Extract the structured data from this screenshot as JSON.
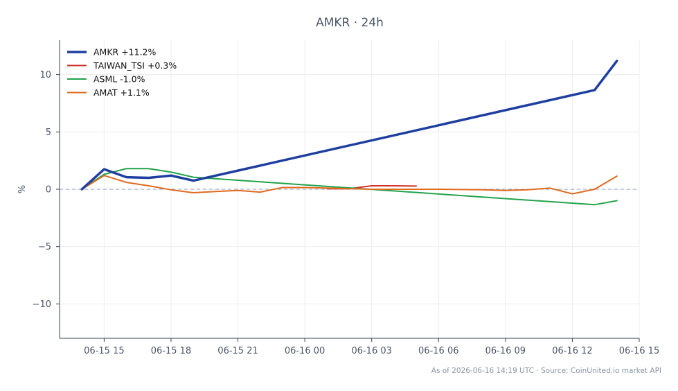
{
  "chart_data": {
    "type": "line",
    "title": "AMKR · 24h",
    "ylabel": "%",
    "xlabel": "",
    "xlim": [
      "2026-06-15 13:00",
      "2026-06-16 15:00"
    ],
    "ylim": [
      -13,
      13
    ],
    "x_ticks": [
      {
        "value": "2026-06-15 15:00",
        "label": "06-15 15"
      },
      {
        "value": "2026-06-15 18:00",
        "label": "06-15 18"
      },
      {
        "value": "2026-06-15 21:00",
        "label": "06-15 21"
      },
      {
        "value": "2026-06-16 00:00",
        "label": "06-16 00"
      },
      {
        "value": "2026-06-16 03:00",
        "label": "06-16 03"
      },
      {
        "value": "2026-06-16 06:00",
        "label": "06-16 06"
      },
      {
        "value": "2026-06-16 09:00",
        "label": "06-16 09"
      },
      {
        "value": "2026-06-16 12:00",
        "label": "06-16 12"
      },
      {
        "value": "2026-06-16 15:00",
        "label": "06-16 15"
      }
    ],
    "y_ticks": [
      {
        "value": -10,
        "label": "−10"
      },
      {
        "value": -5,
        "label": "−5"
      },
      {
        "value": 0,
        "label": "0"
      },
      {
        "value": 5,
        "label": "5"
      },
      {
        "value": 10,
        "label": "10"
      }
    ],
    "grid": true,
    "zero_line": true,
    "legend_position": "top-left",
    "series": [
      {
        "name": "AMKR +11.2%",
        "color": "#1f3fa0",
        "emphasis": true,
        "points": [
          [
            "2026-06-15 14:00",
            0.0
          ],
          [
            "2026-06-15 15:00",
            1.75
          ],
          [
            "2026-06-15 16:00",
            1.05
          ],
          [
            "2026-06-15 17:00",
            1.0
          ],
          [
            "2026-06-15 18:00",
            1.2
          ],
          [
            "2026-06-15 19:00",
            0.75
          ],
          [
            "2026-06-16 13:00",
            8.65
          ],
          [
            "2026-06-16 14:00",
            11.2
          ]
        ]
      },
      {
        "name": "TAIWAN_TSI +0.3%",
        "color": "#d0312d",
        "emphasis": false,
        "points": [
          [
            "2026-06-16 01:00",
            0.05
          ],
          [
            "2026-06-16 02:00",
            0.05
          ],
          [
            "2026-06-16 03:00",
            0.3
          ],
          [
            "2026-06-16 04:00",
            0.3
          ],
          [
            "2026-06-16 05:00",
            0.28
          ]
        ]
      },
      {
        "name": "ASML -1.0%",
        "color": "#22a24a",
        "emphasis": false,
        "points": [
          [
            "2026-06-15 14:00",
            0.0
          ],
          [
            "2026-06-15 15:00",
            1.3
          ],
          [
            "2026-06-15 16:00",
            1.8
          ],
          [
            "2026-06-15 17:00",
            1.8
          ],
          [
            "2026-06-15 18:00",
            1.5
          ],
          [
            "2026-06-15 19:00",
            1.05
          ],
          [
            "2026-06-16 13:00",
            -1.35
          ],
          [
            "2026-06-16 14:00",
            -1.0
          ]
        ]
      },
      {
        "name": "AMAT +1.1%",
        "color": "#e06a1e",
        "emphasis": false,
        "points": [
          [
            "2026-06-15 14:00",
            0.0
          ],
          [
            "2026-06-15 15:00",
            1.2
          ],
          [
            "2026-06-15 16:00",
            0.6
          ],
          [
            "2026-06-15 17:00",
            0.3
          ],
          [
            "2026-06-15 18:00",
            -0.05
          ],
          [
            "2026-06-15 19:00",
            -0.3
          ],
          [
            "2026-06-15 20:00",
            -0.2
          ],
          [
            "2026-06-15 21:00",
            -0.1
          ],
          [
            "2026-06-15 22:00",
            -0.25
          ],
          [
            "2026-06-15 23:00",
            0.15
          ],
          [
            "2026-06-16 00:00",
            0.15
          ],
          [
            "2026-06-16 01:00",
            0.1
          ],
          [
            "2026-06-16 02:00",
            0.05
          ],
          [
            "2026-06-16 03:00",
            0.0
          ],
          [
            "2026-06-16 04:00",
            0.0
          ],
          [
            "2026-06-16 05:00",
            0.0
          ],
          [
            "2026-06-16 06:00",
            0.0
          ],
          [
            "2026-06-16 08:00",
            -0.05
          ],
          [
            "2026-06-16 09:00",
            -0.1
          ],
          [
            "2026-06-16 10:00",
            -0.05
          ],
          [
            "2026-06-16 11:00",
            0.1
          ],
          [
            "2026-06-16 12:00",
            -0.4
          ],
          [
            "2026-06-16 13:00",
            0.0
          ],
          [
            "2026-06-16 14:00",
            1.15
          ]
        ]
      }
    ]
  },
  "footer": {
    "text": "As of 2026-06-16 14:19 UTC · Source: CoinUnited.io market API"
  }
}
